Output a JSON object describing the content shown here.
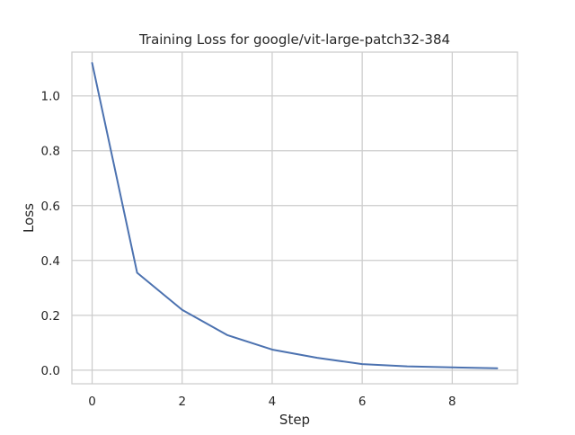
{
  "chart_data": {
    "type": "line",
    "title": "Training Loss for google/vit-large-patch32-384",
    "xlabel": "Step",
    "ylabel": "Loss",
    "xlim": [
      -0.45,
      9.45
    ],
    "ylim": [
      -0.0496,
      1.1596
    ],
    "grid": true,
    "x_ticks": [
      0,
      2,
      4,
      6,
      8
    ],
    "y_ticks": [
      0.0,
      0.2,
      0.4,
      0.6,
      0.8,
      1.0
    ],
    "x_tick_labels": [
      "0",
      "2",
      "4",
      "6",
      "8"
    ],
    "y_tick_labels": [
      "0.0",
      "0.2",
      "0.4",
      "0.6",
      "0.8",
      "1.0"
    ],
    "series": [
      {
        "color": "#4c72b0",
        "x": [
          0,
          1,
          2,
          3,
          4,
          5,
          6,
          7,
          8,
          9
        ],
        "y": [
          1.12,
          0.355,
          0.22,
          0.128,
          0.075,
          0.045,
          0.022,
          0.014,
          0.01,
          0.007
        ]
      }
    ]
  }
}
